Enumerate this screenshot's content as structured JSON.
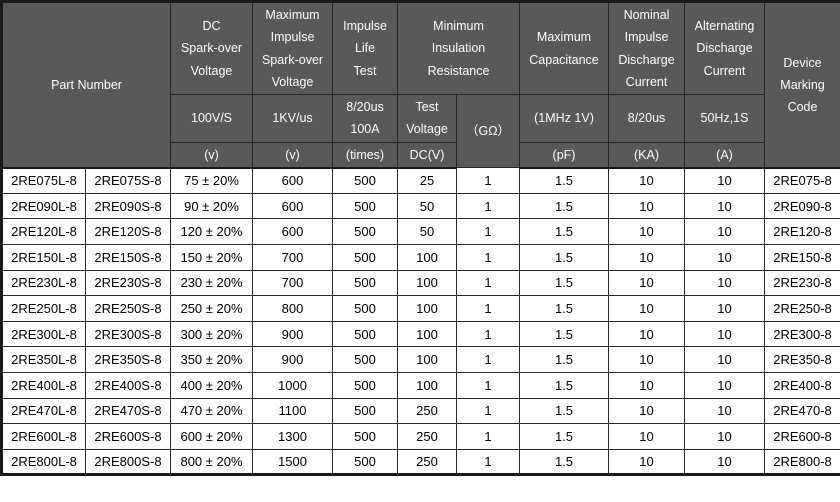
{
  "colors": {
    "header_bg": "#58595b",
    "header_text": "#fdfdfd",
    "body_bg": "#ffffff",
    "body_text": "#000000",
    "border": "#262626"
  },
  "table": {
    "header": {
      "part_number": "Part Number",
      "dc_sparkover": {
        "title": "DC\nSpark-over\nVoltage",
        "condition": "100V/S",
        "unit": "(v)"
      },
      "max_impulse_sparkover": {
        "title": "Maximum\nImpulse\nSpark-over\nVoltage",
        "condition": "1KV/us",
        "unit": "(v)"
      },
      "impulse_life": {
        "title": "Impulse\nLife\nTest",
        "condition": "8/20us\n100A",
        "unit": "(times)"
      },
      "min_insulation": {
        "title": "Minimum\nInsulation\nResistance",
        "test_voltage": "Test\nVoltage",
        "test_voltage_unit": "DC(V)",
        "resistance_unit": "（GΩ）"
      },
      "max_capacitance": {
        "title": "Maximum\nCapacitance",
        "condition": "(1MHz 1V)",
        "unit": "(pF)"
      },
      "nominal_impulse": {
        "title": "Nominal\nImpulse\nDischarge\nCurrent",
        "condition": "8/20us",
        "unit": "(KA)"
      },
      "alternating": {
        "title": "Alternating\nDischarge\nCurrent",
        "condition": "50Hz,1S",
        "unit": "(A)"
      },
      "marking_code": {
        "title": "Device\nMarking\nCode"
      }
    },
    "rows": [
      [
        "2RE075L-8",
        "2RE075S-8",
        "75 ± 20%",
        "600",
        "500",
        "25",
        "1",
        "1.5",
        "10",
        "10",
        "2RE075-8"
      ],
      [
        "2RE090L-8",
        "2RE090S-8",
        "90 ± 20%",
        "600",
        "500",
        "50",
        "1",
        "1.5",
        "10",
        "10",
        "2RE090-8"
      ],
      [
        "2RE120L-8",
        "2RE120S-8",
        "120 ± 20%",
        "600",
        "500",
        "50",
        "1",
        "1.5",
        "10",
        "10",
        "2RE120-8"
      ],
      [
        "2RE150L-8",
        "2RE150S-8",
        "150 ± 20%",
        "700",
        "500",
        "100",
        "1",
        "1.5",
        "10",
        "10",
        "2RE150-8"
      ],
      [
        "2RE230L-8",
        "2RE230S-8",
        "230 ± 20%",
        "700",
        "500",
        "100",
        "1",
        "1.5",
        "10",
        "10",
        "2RE230-8"
      ],
      [
        "2RE250L-8",
        "2RE250S-8",
        "250 ± 20%",
        "800",
        "500",
        "100",
        "1",
        "1.5",
        "10",
        "10",
        "2RE250-8"
      ],
      [
        "2RE300L-8",
        "2RE300S-8",
        "300 ± 20%",
        "900",
        "500",
        "100",
        "1",
        "1.5",
        "10",
        "10",
        "2RE300-8"
      ],
      [
        "2RE350L-8",
        "2RE350S-8",
        "350 ± 20%",
        "900",
        "500",
        "100",
        "1",
        "1.5",
        "10",
        "10",
        "2RE350-8"
      ],
      [
        "2RE400L-8",
        "2RE400S-8",
        "400 ± 20%",
        "1000",
        "500",
        "100",
        "1",
        "1.5",
        "10",
        "10",
        "2RE400-8"
      ],
      [
        "2RE470L-8",
        "2RE470S-8",
        "470 ± 20%",
        "1100",
        "500",
        "250",
        "1",
        "1.5",
        "10",
        "10",
        "2RE470-8"
      ],
      [
        "2RE600L-8",
        "2RE600S-8",
        "600 ± 20%",
        "1300",
        "500",
        "250",
        "1",
        "1.5",
        "10",
        "10",
        "2RE600-8"
      ],
      [
        "2RE800L-8",
        "2RE800S-8",
        "800 ± 20%",
        "1500",
        "500",
        "250",
        "1",
        "1.5",
        "10",
        "10",
        "2RE800-8"
      ]
    ]
  }
}
